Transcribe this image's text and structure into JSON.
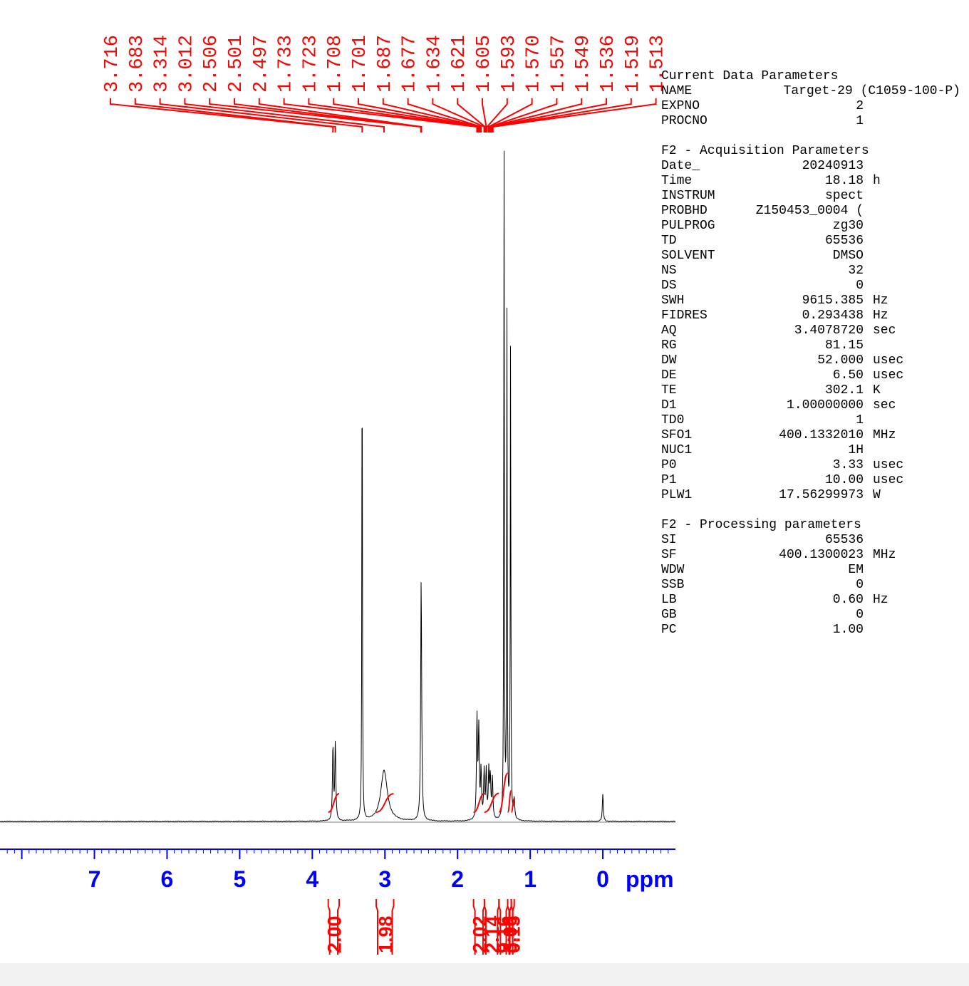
{
  "colors": {
    "spectrum": "#000000",
    "annotation": "#ff0000",
    "axis": "#0000ff",
    "baseline": "#808080",
    "background": "#ffffff",
    "bottom_strip": "#f2f2f2"
  },
  "params": {
    "current": {
      "heading": "Current Data Parameters",
      "rows": [
        {
          "key": "NAME",
          "value": "Target-29 (C1059-100-P)",
          "unit": ""
        },
        {
          "key": "EXPNO",
          "value": "2",
          "unit": ""
        },
        {
          "key": "PROCNO",
          "value": "1",
          "unit": ""
        }
      ]
    },
    "acquisition": {
      "heading": "F2 - Acquisition Parameters",
      "rows": [
        {
          "key": "Date_",
          "value": "20240913",
          "unit": ""
        },
        {
          "key": "Time",
          "value": "18.18",
          "unit": "h"
        },
        {
          "key": "INSTRUM",
          "value": "spect",
          "unit": ""
        },
        {
          "key": "PROBHD",
          "value": "Z150453_0004 (",
          "unit": ""
        },
        {
          "key": "PULPROG",
          "value": "zg30",
          "unit": ""
        },
        {
          "key": "TD",
          "value": "65536",
          "unit": ""
        },
        {
          "key": "SOLVENT",
          "value": "DMSO",
          "unit": ""
        },
        {
          "key": "NS",
          "value": "32",
          "unit": ""
        },
        {
          "key": "DS",
          "value": "0",
          "unit": ""
        },
        {
          "key": "SWH",
          "value": "9615.385",
          "unit": "Hz"
        },
        {
          "key": "FIDRES",
          "value": "0.293438",
          "unit": "Hz"
        },
        {
          "key": "AQ",
          "value": "3.4078720",
          "unit": "sec"
        },
        {
          "key": "RG",
          "value": "81.15",
          "unit": ""
        },
        {
          "key": "DW",
          "value": "52.000",
          "unit": "usec"
        },
        {
          "key": "DE",
          "value": "6.50",
          "unit": "usec"
        },
        {
          "key": "TE",
          "value": "302.1",
          "unit": "K"
        },
        {
          "key": "D1",
          "value": "1.00000000",
          "unit": "sec"
        },
        {
          "key": "TD0",
          "value": "1",
          "unit": ""
        },
        {
          "key": "SFO1",
          "value": "400.1332010",
          "unit": "MHz"
        },
        {
          "key": "NUC1",
          "value": "1H",
          "unit": ""
        },
        {
          "key": "P0",
          "value": "3.33",
          "unit": "usec"
        },
        {
          "key": "P1",
          "value": "10.00",
          "unit": "usec"
        },
        {
          "key": "PLW1",
          "value": "17.56299973",
          "unit": "W"
        }
      ]
    },
    "processing": {
      "heading": "F2 - Processing parameters",
      "rows": [
        {
          "key": "SI",
          "value": "65536",
          "unit": ""
        },
        {
          "key": "SF",
          "value": "400.1300023",
          "unit": "MHz"
        },
        {
          "key": "WDW",
          "value": "EM",
          "unit": ""
        },
        {
          "key": "SSB",
          "value": "0",
          "unit": ""
        },
        {
          "key": "LB",
          "value": "0.60",
          "unit": "Hz"
        },
        {
          "key": "GB",
          "value": "0",
          "unit": ""
        },
        {
          "key": "PC",
          "value": "1.00",
          "unit": ""
        }
      ]
    }
  },
  "chart_data": {
    "type": "line",
    "title": "",
    "xlabel": "ppm",
    "ylabel": "",
    "xlim": [
      8.3,
      -1.0
    ],
    "x_reversed": true,
    "x_ticks": [
      "7",
      "6",
      "5",
      "4",
      "3",
      "2",
      "1",
      "0"
    ],
    "x_tick_values": [
      7,
      6,
      5,
      4,
      3,
      2,
      1,
      0
    ],
    "peak_labels": [
      "3.716",
      "3.683",
      "3.314",
      "3.012",
      "2.506",
      "2.501",
      "2.497",
      "1.733",
      "1.723",
      "1.708",
      "1.701",
      "1.687",
      "1.677",
      "1.634",
      "1.621",
      "1.605",
      "1.593",
      "1.570",
      "1.557",
      "1.549",
      "1.536",
      "1.519",
      "1.513"
    ],
    "peaks": [
      {
        "ppm": 3.716,
        "height": 0.11
      },
      {
        "ppm": 3.683,
        "height": 0.115
      },
      {
        "ppm": 3.314,
        "height": 0.75
      },
      {
        "ppm": 3.012,
        "height": 0.075
      },
      {
        "ppm": 2.501,
        "height": 0.36
      },
      {
        "ppm": 1.733,
        "height": 0.15
      },
      {
        "ppm": 1.708,
        "height": 0.13
      },
      {
        "ppm": 1.677,
        "height": 0.07
      },
      {
        "ppm": 1.634,
        "height": 0.07
      },
      {
        "ppm": 1.605,
        "height": 0.07
      },
      {
        "ppm": 1.57,
        "height": 0.07
      },
      {
        "ppm": 1.549,
        "height": 0.06
      },
      {
        "ppm": 1.52,
        "height": 0.06
      },
      {
        "ppm": 1.36,
        "height": 1.0
      },
      {
        "ppm": 1.32,
        "height": 0.74
      },
      {
        "ppm": 1.27,
        "height": 0.73
      },
      {
        "ppm": 1.22,
        "height": 0.03
      },
      {
        "ppm": 0.0,
        "height": 0.04
      }
    ],
    "integrals": [
      {
        "range": [
          3.78,
          3.63
        ],
        "value": "2.00"
      },
      {
        "range": [
          3.12,
          2.88
        ],
        "value": "1.98"
      },
      {
        "range": [
          1.78,
          1.63
        ],
        "value": "2.02"
      },
      {
        "range": [
          1.63,
          1.43
        ],
        "value": "2.14"
      },
      {
        "range": [
          1.43,
          1.31
        ],
        "value": "9.16"
      },
      {
        "range": [
          1.31,
          1.26
        ],
        "value": "3.06"
      },
      {
        "range": [
          1.26,
          1.22
        ],
        "value": "0.15"
      }
    ]
  }
}
